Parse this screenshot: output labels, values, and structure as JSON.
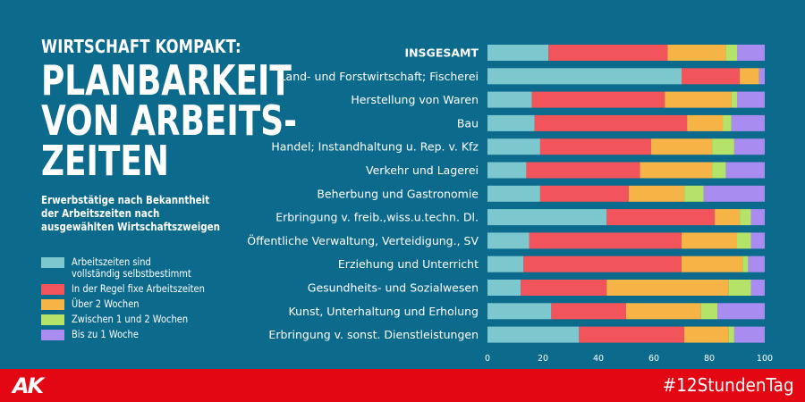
{
  "header": {
    "kicker": "WIRTSCHAFT KOMPAKT:",
    "title_lines": [
      "PLANBARKEIT",
      "VON ARBEITS-",
      "ZEITEN"
    ],
    "subtitle_lines": [
      "Erwerbstätige nach Bekanntheit",
      "der Arbeitszeiten nach",
      "ausgewählten Wirtschaftszweigen"
    ]
  },
  "footer": {
    "logo": "AK",
    "hashtag": "#12StundenTag"
  },
  "colors": {
    "background": "#0c6a8d",
    "footer": "#e30613",
    "series": [
      "#7dc8cf",
      "#f2545b",
      "#f7b446",
      "#b4e36a",
      "#a98cf0"
    ]
  },
  "chart_data": {
    "type": "bar",
    "orientation": "horizontal",
    "stacked": true,
    "categories": [
      "INSGESAMT",
      "Land- und Forstwirtschaft; Fischerei",
      "Herstellung von Waren",
      "Bau",
      "Handel; Instandhaltung u. Rep. v. Kfz",
      "Verkehr und Lagerei",
      "Beherbung und Gastronomie",
      "Erbringung v. freib.,wiss.u.techn. Dl.",
      "Öffentliche Verwaltung, Verteidigung., SV",
      "Erziehung und Unterricht",
      "Gesundheits- und Sozialwesen",
      "Kunst, Unterhaltung und Erholung",
      "Erbringung v. sonst. Dienstleistungen"
    ],
    "series": [
      {
        "name": "Arbeitszeiten sind vollständig selbstbestimmt",
        "values": [
          22,
          70,
          16,
          17,
          19,
          14,
          19,
          43,
          15,
          13,
          12,
          23,
          33
        ]
      },
      {
        "name": "In der Regel fixe Arbeitszeiten",
        "values": [
          43,
          21,
          48,
          55,
          40,
          41,
          32,
          39,
          55,
          57,
          31,
          27,
          38
        ]
      },
      {
        "name": "Über 2 Wochen",
        "values": [
          21,
          7,
          24,
          13,
          22,
          26,
          20,
          9,
          20,
          22,
          44,
          27,
          16
        ]
      },
      {
        "name": "Zwischen 1 und 2 Wochen",
        "values": [
          4,
          0,
          2,
          3,
          8,
          5,
          7,
          4,
          5,
          2,
          8,
          6,
          2
        ]
      },
      {
        "name": "Bis zu 1 Woche",
        "values": [
          10,
          2,
          10,
          12,
          11,
          14,
          22,
          5,
          5,
          6,
          5,
          17,
          11
        ]
      }
    ],
    "legend_labels": [
      [
        "Arbeitszeiten sind",
        "vollständig selbstbestimmt"
      ],
      [
        "In der Regel fixe Arbeitszeiten"
      ],
      [
        "Über 2 Wochen"
      ],
      [
        "Zwischen 1 und 2 Wochen"
      ],
      [
        "Bis zu 1 Woche"
      ]
    ],
    "x_ticks": [
      0,
      20,
      40,
      60,
      80,
      100
    ],
    "xlim": [
      0,
      100
    ],
    "title": "Erwerbstätige nach Bekanntheit der Arbeitszeiten nach ausgewählten Wirtschaftszweigen",
    "xlabel": "",
    "ylabel": "",
    "legend_position": "bottom-left"
  }
}
